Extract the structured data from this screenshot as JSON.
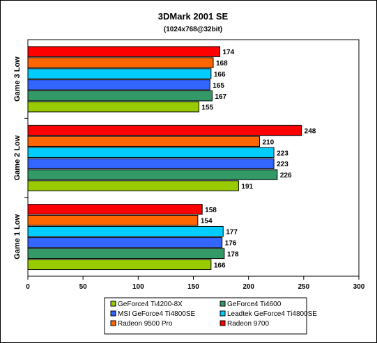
{
  "chart_data": {
    "type": "bar",
    "orientation": "horizontal",
    "title": "3DMark 2001 SE",
    "subtitle": "(1024x768@32bit)",
    "categories": [
      "Game 3 Low",
      "Game 2 Low",
      "Game 1 Low"
    ],
    "series": [
      {
        "name": "GeForce4 Ti4200-8X",
        "color": "#99cc00",
        "values": [
          155,
          191,
          166
        ]
      },
      {
        "name": "GeForce4 Ti4600",
        "color": "#339966",
        "values": [
          167,
          226,
          178
        ]
      },
      {
        "name": "MSI GeForce4 Ti4800SE",
        "color": "#3366ff",
        "values": [
          165,
          223,
          176
        ]
      },
      {
        "name": "Leadtek GeForce4 Ti4800SE",
        "color": "#00ccff",
        "values": [
          166,
          223,
          177
        ]
      },
      {
        "name": "Radeon 9500 Pro",
        "color": "#ff6600",
        "values": [
          168,
          210,
          154
        ]
      },
      {
        "name": "Radeon 9700",
        "color": "#ff0000",
        "values": [
          174,
          248,
          158
        ]
      }
    ],
    "xlim": [
      0,
      300
    ],
    "xticks": [
      0,
      50,
      100,
      150,
      200,
      250,
      300
    ],
    "xlabel": "",
    "ylabel": "",
    "grid": false,
    "legend_position": "bottom"
  }
}
